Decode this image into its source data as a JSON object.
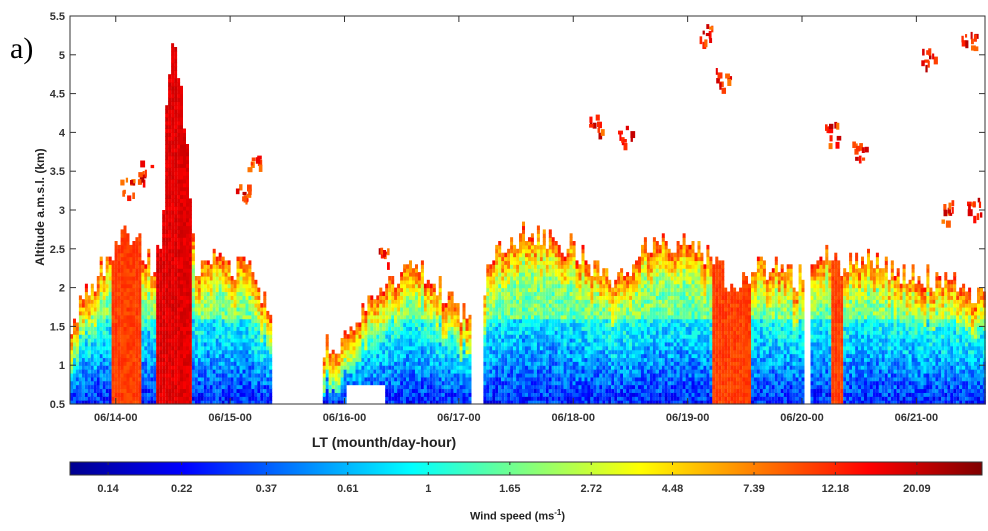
{
  "panel_label": "a)",
  "colorbar": {
    "label": "Wind speed (ms",
    "label_exp": "-1",
    "label_end": ")",
    "ticks": [
      "0.14",
      "0.22",
      "0.37",
      "0.61",
      "1",
      "1.65",
      "2.72",
      "4.48",
      "7.39",
      "12.18",
      "20.09"
    ],
    "log_min": -2.2,
    "log_max": 3.4,
    "colormap": [
      "#00008f",
      "#0000ff",
      "#0080ff",
      "#00ffff",
      "#80ff80",
      "#ffff00",
      "#ff8000",
      "#ff0000",
      "#800000"
    ]
  },
  "chart_data": {
    "type": "heatmap",
    "title": "",
    "xlabel": "LT (mounth/day-hour)",
    "ylabel": "Altitude a.m.s.l. (km)",
    "x_ticks": [
      "06/14-00",
      "06/15-00",
      "06/16-00",
      "06/17-00",
      "06/18-00",
      "06/19-00",
      "06/20-00",
      "06/21-00"
    ],
    "x_range_days": [
      13.6,
      21.6
    ],
    "y_ticks": [
      "0.5",
      "1",
      "1.5",
      "2",
      "2.5",
      "3",
      "3.5",
      "4",
      "4.5",
      "5",
      "5.5"
    ],
    "ylim": [
      0.5,
      5.5
    ],
    "z_label": "Wind speed (ms-1)",
    "data_note": "lidar retrievals; blank where no data",
    "top_of_data_km": [
      [
        13.6,
        1.55
      ],
      [
        13.75,
        1.9
      ],
      [
        13.9,
        2.3
      ],
      [
        14.05,
        2.7
      ],
      [
        14.15,
        2.7
      ],
      [
        14.3,
        2.3
      ],
      [
        14.4,
        2.4
      ],
      [
        14.42,
        4.3
      ],
      [
        14.5,
        5.3
      ],
      [
        14.6,
        4.0
      ],
      [
        14.7,
        2.1
      ],
      [
        14.85,
        2.5
      ],
      [
        15.0,
        2.2
      ],
      [
        15.15,
        2.4
      ],
      [
        15.35,
        1.6
      ],
      [
        15.55,
        0.9
      ],
      [
        15.8,
        1.2
      ],
      [
        16.0,
        1.3
      ],
      [
        16.3,
        2.0
      ],
      [
        16.55,
        2.3
      ],
      [
        16.75,
        2.1
      ],
      [
        16.95,
        1.7
      ],
      [
        17.15,
        1.5
      ],
      [
        17.25,
        2.3
      ],
      [
        17.45,
        2.6
      ],
      [
        17.7,
        2.7
      ],
      [
        17.95,
        2.5
      ],
      [
        18.15,
        2.3
      ],
      [
        18.35,
        2.0
      ],
      [
        18.65,
        2.5
      ],
      [
        18.9,
        2.5
      ],
      [
        19.2,
        2.4
      ],
      [
        19.35,
        2.0
      ],
      [
        19.55,
        2.2
      ],
      [
        19.75,
        2.3
      ],
      [
        19.95,
        2.1
      ],
      [
        20.15,
        2.5
      ],
      [
        20.35,
        2.2
      ],
      [
        20.55,
        2.4
      ],
      [
        20.75,
        2.2
      ],
      [
        20.95,
        2.2
      ],
      [
        21.15,
        2.1
      ],
      [
        21.35,
        2.0
      ],
      [
        21.6,
        1.9
      ]
    ],
    "high_wind_columns": [
      {
        "from": 14.35,
        "to": 14.65,
        "top_km": 5.4,
        "value": 20.09
      },
      {
        "from": 13.95,
        "to": 14.2,
        "top_km": 2.8,
        "value": 12.18
      },
      {
        "from": 19.2,
        "to": 19.55,
        "top_km": 3.3,
        "value": 12.18
      },
      {
        "from": 20.25,
        "to": 20.35,
        "top_km": 3.0,
        "value": 12.18
      }
    ]
  }
}
